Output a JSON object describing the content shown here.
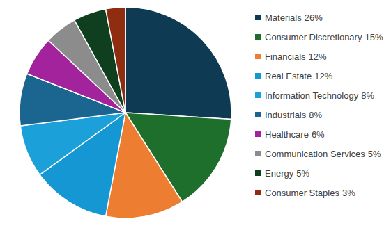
{
  "chart_data": {
    "type": "pie",
    "categories": [
      "Materials",
      "Consumer Discretionary",
      "Financials",
      "Real Estate",
      "Information Technology",
      "Industrials",
      "Healthcare",
      "Communication Services",
      "Energy",
      "Consumer Staples"
    ],
    "values": [
      26,
      15,
      12,
      12,
      8,
      8,
      6,
      5,
      5,
      3
    ],
    "value_labels": [
      "26%",
      "15%",
      "12%",
      "12%",
      "8%",
      "8%",
      "6%",
      "5%",
      "5%",
      "3%"
    ],
    "colors": [
      "#0e3a53",
      "#1e6e2c",
      "#ed7d31",
      "#1497d2",
      "#1ba0da",
      "#1b6690",
      "#a3239c",
      "#8c8c8c",
      "#0f3f1f",
      "#8e2d10"
    ],
    "legend": "right"
  }
}
